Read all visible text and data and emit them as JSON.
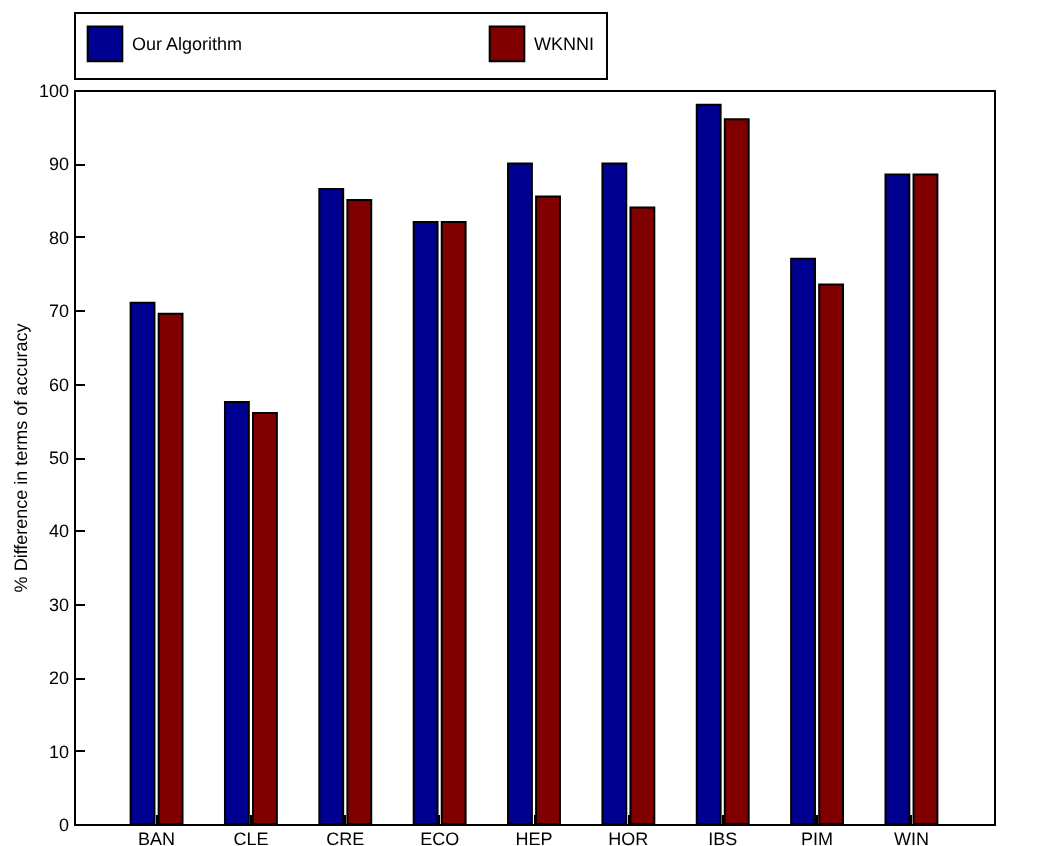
{
  "chart_data": {
    "type": "bar",
    "ylabel": "% Difference in terms of accuracy",
    "categories": [
      "BAN",
      "CLE",
      "CRE",
      "ECO",
      "HEP",
      "HOR",
      "IBS",
      "PIM",
      "WIN"
    ],
    "series": [
      {
        "name": "Our Algorithm",
        "color": "#000090",
        "values": [
          71,
          57.5,
          86.5,
          82,
          90,
          90,
          98,
          77,
          88.5
        ]
      },
      {
        "name": "WKNNI",
        "color": "#800000",
        "values": [
          69.5,
          56,
          85,
          82,
          85.5,
          84,
          96,
          73.5,
          88.5
        ]
      }
    ],
    "ylim": [
      0,
      100
    ],
    "yticks": [
      0,
      10,
      20,
      30,
      40,
      50,
      60,
      70,
      80,
      90,
      100
    ],
    "grid": false,
    "legend": "top"
  }
}
